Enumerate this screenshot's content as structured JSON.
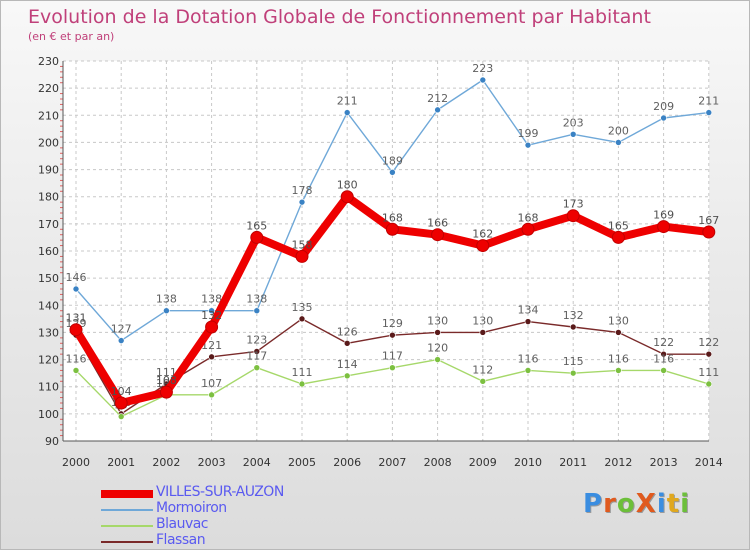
{
  "title": "Evolution de la Dotation Globale de Fonctionnement par Habitant",
  "subtitle": "(en € et par an)",
  "logo": {
    "text": "ProXiti",
    "colors": [
      "#3a8de0",
      "#e05a1e",
      "#6cbf3a",
      "#e05a1e",
      "#3a8de0",
      "#e0a81e",
      "#6cbf3a"
    ]
  },
  "chart_data": {
    "type": "line",
    "title": "Evolution de la Dotation Globale de Fonctionnement par Habitant",
    "subtitle": "(en € et par an)",
    "xlabel": "",
    "ylabel": "",
    "x": [
      "2000",
      "2001",
      "2002",
      "2003",
      "2004",
      "2005",
      "2006",
      "2007",
      "2008",
      "2009",
      "2010",
      "2011",
      "2012",
      "2013",
      "2014"
    ],
    "ylim": [
      90,
      230
    ],
    "yticks": [
      90,
      100,
      110,
      120,
      130,
      140,
      150,
      160,
      170,
      180,
      190,
      200,
      210,
      220,
      230
    ],
    "grid": true,
    "legend_position": "bottom-left",
    "series": [
      {
        "name": "Mormoiron",
        "color": "#6fa8d8",
        "marker": "#3a82c4",
        "label_color": "#606060",
        "values": [
          146,
          127,
          138,
          138,
          138,
          178,
          211,
          189,
          212,
          223,
          199,
          203,
          200,
          209,
          211
        ],
        "labels": [
          "146",
          "127",
          "138",
          "138",
          "138",
          "178",
          "211",
          "189",
          "212",
          "223",
          "199",
          "203",
          "200",
          "209",
          "211"
        ]
      },
      {
        "name": "Flassan",
        "color": "#7a2a2a",
        "marker": "#5a1a1a",
        "label_color": "#606060",
        "values": [
          129,
          100,
          111,
          121,
          123,
          135,
          126,
          129,
          130,
          130,
          134,
          132,
          130,
          122,
          122
        ],
        "labels": [
          "129",
          "100",
          "111",
          "121",
          "123",
          "135",
          "126",
          "129",
          "130",
          "130",
          "134",
          "132",
          "130",
          "122",
          "122"
        ]
      },
      {
        "name": "Blauvac",
        "color": "#a6d86a",
        "marker": "#7cc040",
        "label_color": "#606060",
        "values": [
          116,
          99,
          107,
          107,
          117,
          111,
          114,
          117,
          120,
          112,
          116,
          115,
          116,
          116,
          111
        ],
        "labels": [
          "116",
          "99",
          "107",
          "107",
          "117",
          "111",
          "114",
          "117",
          "120",
          "112",
          "116",
          "115",
          "116",
          "116",
          "111"
        ]
      },
      {
        "name": "VILLES-SUR-AUZON",
        "color": "#ee0000",
        "marker": "#ee0000",
        "label_color": "#505050",
        "values": [
          131,
          104,
          108,
          132,
          165,
          158,
          180,
          168,
          166,
          162,
          168,
          173,
          165,
          169,
          167
        ],
        "labels": [
          "131",
          "104",
          "108",
          "132",
          "165",
          "158",
          "180",
          "168",
          "166",
          "162",
          "168",
          "173",
          "165",
          "169",
          "167"
        ]
      }
    ],
    "legend": [
      {
        "name": "VILLES-SUR-AUZON",
        "color": "#ee0000",
        "label_color": "#5a5af0"
      },
      {
        "name": "Mormoiron",
        "color": "#6fa8d8",
        "label_color": "#5a5af0"
      },
      {
        "name": "Blauvac",
        "color": "#a6d86a",
        "label_color": "#5a5af0"
      },
      {
        "name": "Flassan",
        "color": "#7a2a2a",
        "label_color": "#5a5af0"
      }
    ]
  }
}
